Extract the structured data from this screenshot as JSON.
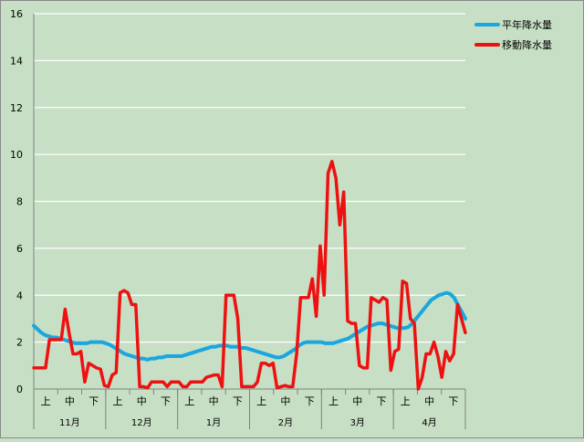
{
  "chart_data": {
    "type": "line",
    "ylim": [
      0,
      16
    ],
    "yticks": [
      0,
      2,
      4,
      6,
      8,
      10,
      12,
      14,
      16
    ],
    "months": [
      "11月",
      "12月",
      "1月",
      "2月",
      "3月",
      "4月"
    ],
    "dekads": [
      "上",
      "中",
      "下"
    ],
    "grid": true,
    "legend_position": "top-right",
    "series": [
      {
        "name": "平年降水量",
        "color": "#1aa7e0",
        "values": [
          2.7,
          2.55,
          2.4,
          2.3,
          2.25,
          2.2,
          2.2,
          2.15,
          2.1,
          2.05,
          2.0,
          1.95,
          1.95,
          1.95,
          1.95,
          2.0,
          2.0,
          2.0,
          2.0,
          1.95,
          1.9,
          1.8,
          1.7,
          1.6,
          1.5,
          1.45,
          1.4,
          1.35,
          1.3,
          1.3,
          1.25,
          1.3,
          1.3,
          1.35,
          1.35,
          1.4,
          1.4,
          1.4,
          1.4,
          1.4,
          1.45,
          1.5,
          1.55,
          1.6,
          1.65,
          1.7,
          1.75,
          1.8,
          1.8,
          1.85,
          1.85,
          1.85,
          1.8,
          1.8,
          1.8,
          1.75,
          1.75,
          1.7,
          1.65,
          1.6,
          1.55,
          1.5,
          1.45,
          1.4,
          1.35,
          1.35,
          1.4,
          1.5,
          1.6,
          1.7,
          1.85,
          1.95,
          2.0,
          2.0,
          2.0,
          2.0,
          2.0,
          1.95,
          1.95,
          1.95,
          2.0,
          2.05,
          2.1,
          2.15,
          2.25,
          2.35,
          2.45,
          2.55,
          2.65,
          2.7,
          2.75,
          2.8,
          2.8,
          2.75,
          2.7,
          2.65,
          2.6,
          2.6,
          2.6,
          2.65,
          2.8,
          3.0,
          3.2,
          3.4,
          3.6,
          3.8,
          3.9,
          4.0,
          4.05,
          4.1,
          4.05,
          3.9,
          3.6,
          3.3,
          3.0
        ]
      },
      {
        "name": "移動降水量",
        "color": "#ee1111",
        "values": [
          0.9,
          0.9,
          0.9,
          0.9,
          2.1,
          2.1,
          2.1,
          2.1,
          3.4,
          2.4,
          1.5,
          1.5,
          1.6,
          0.3,
          1.1,
          1.0,
          0.9,
          0.85,
          0.15,
          0.1,
          0.6,
          0.7,
          4.1,
          4.2,
          4.1,
          3.6,
          3.6,
          0.1,
          0.1,
          0.05,
          0.3,
          0.3,
          0.3,
          0.3,
          0.1,
          0.3,
          0.3,
          0.3,
          0.1,
          0.1,
          0.3,
          0.3,
          0.3,
          0.3,
          0.5,
          0.55,
          0.6,
          0.6,
          0.1,
          4.0,
          4.0,
          4.0,
          3.0,
          0.1,
          0.1,
          0.1,
          0.1,
          0.3,
          1.1,
          1.1,
          1.0,
          1.1,
          0.05,
          0.1,
          0.15,
          0.1,
          0.1,
          1.5,
          3.9,
          3.9,
          3.9,
          4.7,
          3.1,
          6.1,
          4.0,
          9.2,
          9.7,
          9.0,
          7.0,
          8.4,
          2.9,
          2.8,
          2.8,
          1.0,
          0.9,
          0.9,
          3.9,
          3.8,
          3.7,
          3.9,
          3.8,
          0.8,
          1.6,
          1.7,
          4.6,
          4.5,
          3.0,
          2.8,
          0.0,
          0.5,
          1.5,
          1.5,
          2.0,
          1.4,
          0.5,
          1.6,
          1.2,
          1.5,
          3.6,
          3.0,
          2.4
        ]
      }
    ]
  }
}
